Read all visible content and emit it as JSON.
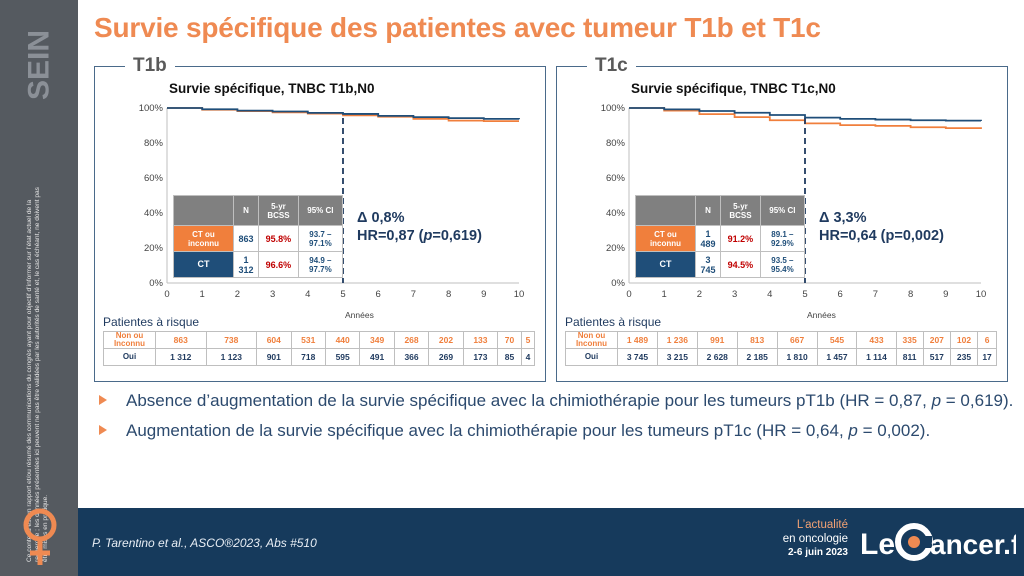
{
  "title": "Survie spécifique des patientes avec tumeur T1b et T1c",
  "sidebar": {
    "label": "SEIN",
    "disclaimer": "Ce contenu est un rapport et/ou résumé des communications du congrès ayant pour objectif d’informer sur l’état actuel de la recherche ; les données présentées ici peuvent ne pas être validées par les autorités de santé et, le cas échéant, ne doivent pas être mises en pratique."
  },
  "panels": [
    {
      "tag": "T1b",
      "plot_title": "Survie spécifique, TNBC T1b,N0",
      "delta": "Δ 0,8%",
      "hr_prefix": "HR=0,87 (",
      "hr_p": "p",
      "hr_suffix": "=0,619)",
      "table": {
        "headers": [
          "N",
          "5-yr BCSS",
          "95% CI"
        ],
        "rows": [
          {
            "label": "CT ou inconnu",
            "n": "863",
            "bcss": "95.8%",
            "ci": "93.7 – 97.1%"
          },
          {
            "label": "CT",
            "n": "1 312",
            "bcss": "96.6%",
            "ci": "94.9 – 97.7%"
          }
        ]
      },
      "risk": {
        "title": "Patientes à risque",
        "rows": [
          {
            "label": "Non ou Inconnu",
            "values": [
              "863",
              "738",
              "604",
              "531",
              "440",
              "349",
              "268",
              "202",
              "133",
              "70",
              "5"
            ]
          },
          {
            "label": "Oui",
            "values": [
              "1 312",
              "1 123",
              "901",
              "718",
              "595",
              "491",
              "366",
              "269",
              "173",
              "85",
              "4"
            ]
          }
        ]
      }
    },
    {
      "tag": "T1c",
      "plot_title": "Survie spécifique, TNBC T1c,N0",
      "delta": "Δ 3,3%",
      "hr_prefix": "HR=0,64 (p=0,002)",
      "hr_p": "",
      "hr_suffix": "",
      "table": {
        "headers": [
          "N",
          "5-yr BCSS",
          "95% CI"
        ],
        "rows": [
          {
            "label": "CT ou inconnu",
            "n": "1 489",
            "bcss": "91.2%",
            "ci": "89.1 – 92.9%"
          },
          {
            "label": "CT",
            "n": "3 745",
            "bcss": "94.5%",
            "ci": "93.5 – 95.4%"
          }
        ]
      },
      "risk": {
        "title": "Patientes à risque",
        "rows": [
          {
            "label": "Non ou Inconnu",
            "values": [
              "1 489",
              "1 236",
              "991",
              "813",
              "667",
              "545",
              "433",
              "335",
              "207",
              "102",
              "6"
            ]
          },
          {
            "label": "Oui",
            "values": [
              "3 745",
              "3 215",
              "2 628",
              "2 185",
              "1 810",
              "1 457",
              "1 114",
              "811",
              "517",
              "235",
              "17"
            ]
          }
        ]
      }
    }
  ],
  "chart_data": [
    {
      "type": "line",
      "title": "Survie spécifique, TNBC T1b,N0",
      "xlabel": "Années",
      "ylabel": "",
      "xlim": [
        0,
        10
      ],
      "ylim": [
        0,
        100
      ],
      "x_ticks": [
        "0",
        "1",
        "2",
        "3",
        "4",
        "5",
        "6",
        "7",
        "8",
        "9",
        "10"
      ],
      "y_ticks": [
        "0%",
        "20%",
        "40%",
        "60%",
        "80%",
        "100%"
      ],
      "reference_line_x": 5,
      "series": [
        {
          "color": "#1f4e79",
          "x": [
            0,
            1,
            2,
            3,
            4,
            5,
            6,
            7,
            8,
            9,
            10
          ],
          "y": [
            100,
            99.3,
            98.5,
            98,
            97.2,
            96.6,
            95.5,
            94.8,
            94.2,
            93.8,
            93.6
          ]
        },
        {
          "color": "#f07f3c",
          "x": [
            0,
            1,
            2,
            3,
            4,
            5,
            6,
            7,
            8,
            9,
            10
          ],
          "y": [
            100,
            99,
            98.2,
            97.5,
            96.8,
            95.8,
            95,
            93.8,
            92.8,
            92.5,
            92.5
          ]
        }
      ]
    },
    {
      "type": "line",
      "title": "Survie spécifique, TNBC T1c,N0",
      "xlabel": "Années",
      "ylabel": "",
      "xlim": [
        0,
        10
      ],
      "ylim": [
        0,
        100
      ],
      "x_ticks": [
        "0",
        "1",
        "2",
        "3",
        "4",
        "5",
        "6",
        "7",
        "8",
        "9",
        "10"
      ],
      "y_ticks": [
        "0%",
        "20%",
        "40%",
        "60%",
        "80%",
        "100%"
      ],
      "reference_line_x": 5,
      "series": [
        {
          "color": "#1f4e79",
          "x": [
            0,
            1,
            2,
            3,
            4,
            5,
            6,
            7,
            8,
            9,
            10
          ],
          "y": [
            100,
            99.2,
            98.3,
            97.3,
            96,
            94.5,
            93.8,
            93.4,
            93,
            92.8,
            92.6
          ]
        },
        {
          "color": "#f07f3c",
          "x": [
            0,
            1,
            2,
            3,
            4,
            5,
            6,
            7,
            8,
            9,
            10
          ],
          "y": [
            100,
            98.5,
            96.5,
            94.8,
            93,
            91.2,
            90.2,
            89.8,
            89,
            88.5,
            88
          ]
        }
      ]
    }
  ],
  "bullets": [
    {
      "text_a": "Absence d’augmentation de la survie spécifique avec la chimiothérapie pour les tumeurs pT1b (HR = 0,87,  ",
      "p": "p",
      "text_b": " = 0,619)."
    },
    {
      "text_a": "Augmentation de la survie spécifique avec la chimiothérapie pour les tumeurs pT1c (HR = 0,64, ",
      "p": "p",
      "text_b": " = 0,002)."
    }
  ],
  "footer": {
    "reference": "P. Tarentino et al., ASCO®2023, Abs #510",
    "actu_line1": "L’actualité",
    "actu_line2": "en oncologie",
    "actu_dates": "2-6 juin 2023",
    "logo_left": "Le",
    "logo_right": "ancer.fr"
  }
}
